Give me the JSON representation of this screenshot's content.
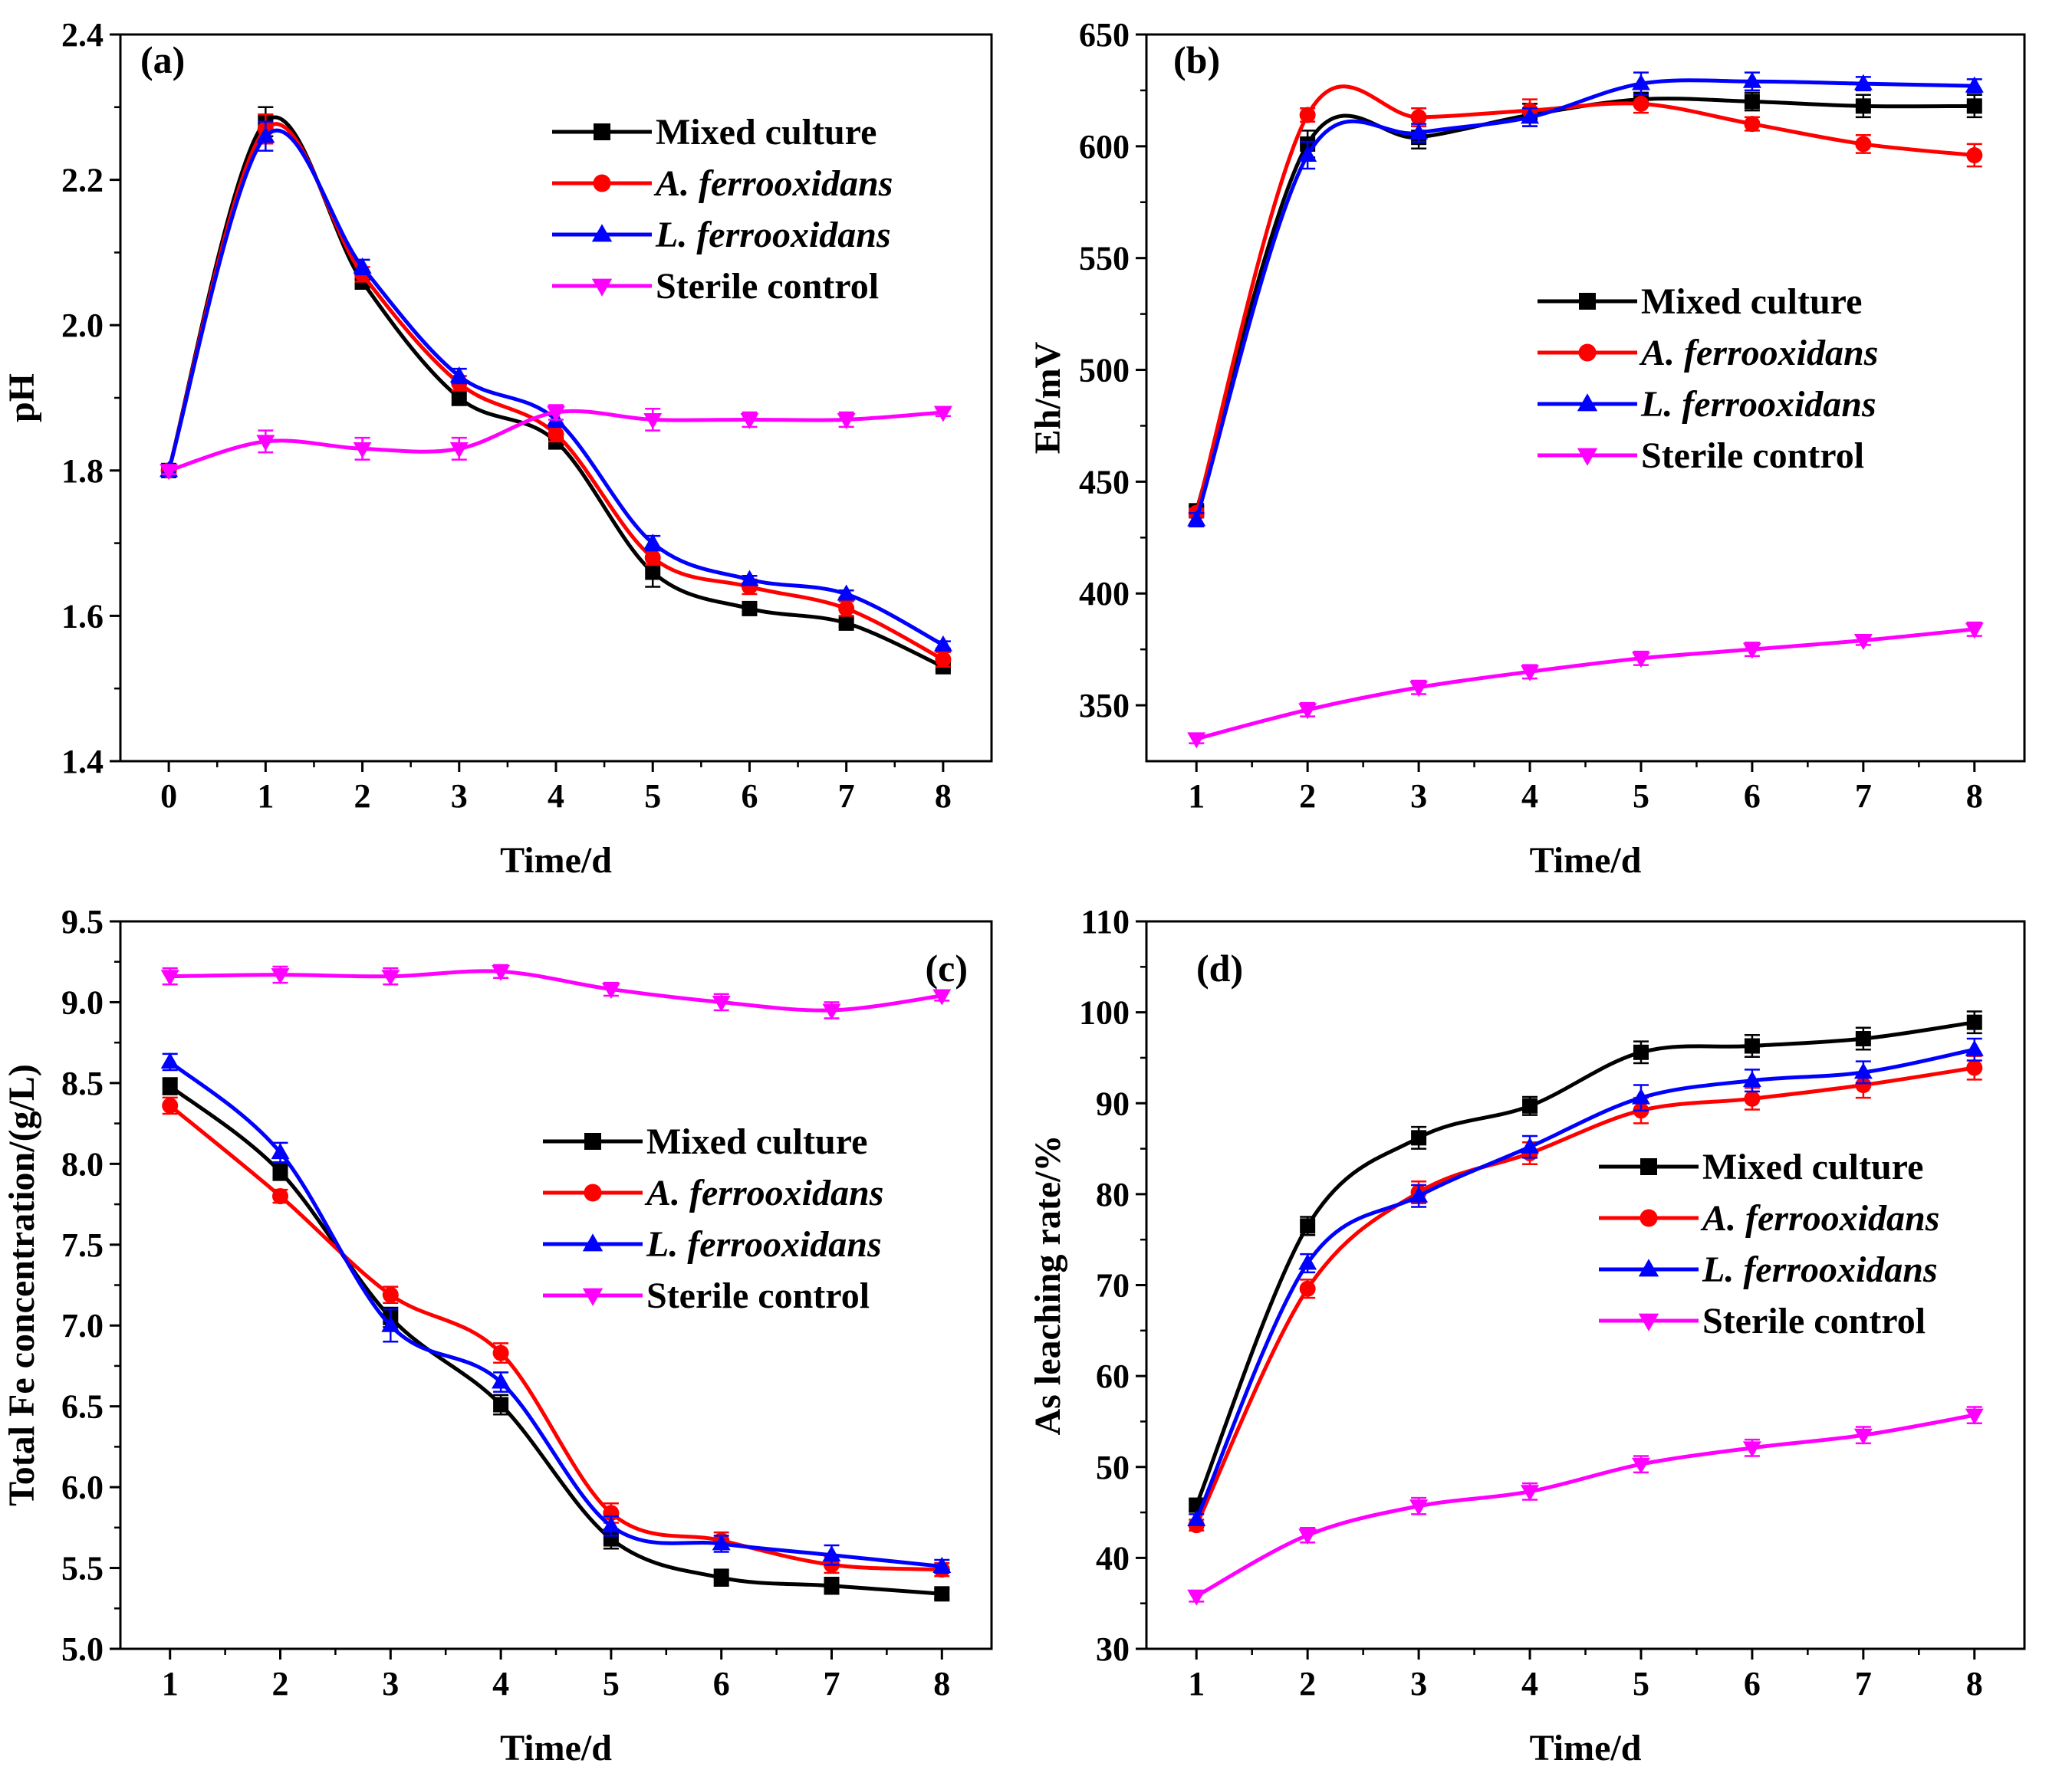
{
  "chart_data": [
    {
      "type": "line",
      "panel_label": "(a)",
      "xlabel": "Time/d",
      "ylabel": "pH",
      "xlim": [
        -0.5,
        8.5
      ],
      "ylim": [
        1.4,
        2.4
      ],
      "xticks": [
        0,
        1,
        2,
        3,
        4,
        5,
        6,
        7,
        8
      ],
      "yticks": [
        1.4,
        1.6,
        1.8,
        2.0,
        2.2,
        2.4
      ],
      "ytick_labels": [
        "1.4",
        "1.6",
        "1.8",
        "2.0",
        "2.2",
        "2.4"
      ],
      "legend_position": "top-right",
      "series": [
        {
          "name": "Mixed culture",
          "marker": "square",
          "color": "#000000",
          "x": [
            0,
            1,
            2,
            3,
            4,
            5,
            6,
            7,
            8
          ],
          "values": [
            1.8,
            2.28,
            2.06,
            1.9,
            1.84,
            1.66,
            1.61,
            1.59,
            1.53
          ],
          "errors": [
            0.005,
            0.02,
            0.01,
            0.01,
            0.01,
            0.02,
            0.005,
            0.005,
            0.005
          ]
        },
        {
          "name": "A. ferrooxidans",
          "marker": "circle",
          "color": "#ff0000",
          "x": [
            0,
            1,
            2,
            3,
            4,
            5,
            6,
            7,
            8
          ],
          "values": [
            1.8,
            2.27,
            2.07,
            1.92,
            1.85,
            1.68,
            1.64,
            1.61,
            1.54
          ],
          "errors": [
            0.005,
            0.02,
            0.01,
            0.01,
            0.01,
            0.01,
            0.01,
            0.01,
            0.01
          ]
        },
        {
          "name": "L. ferrooxidans",
          "marker": "triangle-up",
          "color": "#0000ff",
          "x": [
            0,
            1,
            2,
            3,
            4,
            5,
            6,
            7,
            8
          ],
          "values": [
            1.8,
            2.26,
            2.08,
            1.93,
            1.87,
            1.7,
            1.65,
            1.63,
            1.56
          ],
          "errors": [
            0.005,
            0.02,
            0.01,
            0.01,
            0.01,
            0.01,
            0.005,
            0.005,
            0.005
          ]
        },
        {
          "name": "Sterile control",
          "marker": "triangle-down",
          "color": "#ff00ff",
          "x": [
            0,
            1,
            2,
            3,
            4,
            5,
            6,
            7,
            8
          ],
          "values": [
            1.8,
            1.84,
            1.83,
            1.83,
            1.88,
            1.87,
            1.87,
            1.87,
            1.88
          ],
          "errors": [
            0.005,
            0.015,
            0.015,
            0.015,
            0.01,
            0.015,
            0.01,
            0.01,
            0.005
          ]
        }
      ]
    },
    {
      "type": "line",
      "panel_label": "(b)",
      "xlabel": "Time/d",
      "ylabel": "Eh/mV",
      "xlim": [
        0.55,
        8.45
      ],
      "ylim": [
        325,
        650
      ],
      "xticks": [
        1,
        2,
        3,
        4,
        5,
        6,
        7,
        8
      ],
      "yticks": [
        350,
        400,
        450,
        500,
        550,
        600,
        650
      ],
      "ytick_labels": [
        "350",
        "400",
        "450",
        "500",
        "550",
        "600",
        "650"
      ],
      "legend_position": "center-right",
      "series": [
        {
          "name": "Mixed culture",
          "marker": "square",
          "color": "#000000",
          "x": [
            1,
            2,
            3,
            4,
            5,
            6,
            7,
            8
          ],
          "values": [
            437,
            601,
            604,
            614,
            621,
            620,
            618,
            618
          ],
          "errors": [
            2,
            6,
            5,
            5,
            2,
            4,
            5,
            5
          ]
        },
        {
          "name": "A. ferrooxidans",
          "marker": "circle",
          "color": "#ff0000",
          "x": [
            1,
            2,
            3,
            4,
            5,
            6,
            7,
            8
          ],
          "values": [
            436,
            614,
            613,
            616,
            619,
            610,
            601,
            596
          ],
          "errors": [
            2,
            3,
            4,
            5,
            4,
            3,
            4,
            5
          ]
        },
        {
          "name": "L. ferrooxidans",
          "marker": "triangle-up",
          "color": "#0000ff",
          "x": [
            1,
            2,
            3,
            4,
            5,
            6,
            7,
            8
          ],
          "values": [
            433,
            596,
            606,
            613,
            628,
            629,
            628,
            627
          ],
          "errors": [
            3,
            6,
            4,
            4,
            5,
            4,
            3,
            3
          ]
        },
        {
          "name": "Sterile control",
          "marker": "triangle-down",
          "color": "#ff00ff",
          "x": [
            1,
            2,
            3,
            4,
            5,
            6,
            7,
            8
          ],
          "values": [
            335,
            348,
            358,
            365,
            371,
            375,
            379,
            384
          ],
          "errors": [
            2,
            3,
            3,
            3,
            3,
            3,
            2,
            3
          ]
        }
      ]
    },
    {
      "type": "line",
      "panel_label": "(c)",
      "xlabel": "Time/d",
      "ylabel": "Total Fe concentration/(g/L)",
      "xlim": [
        0.55,
        8.45
      ],
      "ylim": [
        5.0,
        9.5
      ],
      "xticks": [
        1,
        2,
        3,
        4,
        5,
        6,
        7,
        8
      ],
      "yticks": [
        5.0,
        5.5,
        6.0,
        6.5,
        7.0,
        7.5,
        8.0,
        8.5,
        9.0,
        9.5
      ],
      "ytick_labels": [
        "5.0",
        "5.5",
        "6.0",
        "6.5",
        "7.0",
        "7.5",
        "8.0",
        "8.5",
        "9.0",
        "9.5"
      ],
      "legend_position": "center-right",
      "series": [
        {
          "name": "Mixed culture",
          "marker": "square",
          "color": "#000000",
          "x": [
            1,
            2,
            3,
            4,
            5,
            6,
            7,
            8
          ],
          "values": [
            8.48,
            7.95,
            7.05,
            6.51,
            5.68,
            5.44,
            5.39,
            5.34
          ],
          "errors": [
            0.05,
            0.05,
            0.06,
            0.06,
            0.06,
            0.05,
            0.05,
            0.03
          ]
        },
        {
          "name": "A. ferrooxidans",
          "marker": "circle",
          "color": "#ff0000",
          "x": [
            1,
            2,
            3,
            4,
            5,
            6,
            7,
            8
          ],
          "values": [
            8.36,
            7.8,
            7.19,
            6.83,
            5.84,
            5.67,
            5.52,
            5.49
          ],
          "errors": [
            0.05,
            0.04,
            0.05,
            0.06,
            0.06,
            0.05,
            0.05,
            0.04
          ]
        },
        {
          "name": "L. ferrooxidans",
          "marker": "triangle-up",
          "color": "#0000ff",
          "x": [
            1,
            2,
            3,
            4,
            5,
            6,
            7,
            8
          ],
          "values": [
            8.63,
            8.07,
            7.0,
            6.65,
            5.76,
            5.65,
            5.58,
            5.51
          ],
          "errors": [
            0.05,
            0.06,
            0.1,
            0.06,
            0.06,
            0.05,
            0.06,
            0.04
          ]
        },
        {
          "name": "Sterile control",
          "marker": "triangle-down",
          "color": "#ff00ff",
          "x": [
            1,
            2,
            3,
            4,
            5,
            6,
            7,
            8
          ],
          "values": [
            9.16,
            9.17,
            9.16,
            9.19,
            9.08,
            9.0,
            8.95,
            9.04
          ],
          "errors": [
            0.05,
            0.05,
            0.05,
            0.04,
            0.04,
            0.05,
            0.05,
            0.03
          ]
        }
      ]
    },
    {
      "type": "line",
      "panel_label": "(d)",
      "xlabel": "Time/d",
      "ylabel": "As leaching rate/%",
      "xlim": [
        0.55,
        8.45
      ],
      "ylim": [
        30,
        110
      ],
      "xticks": [
        1,
        2,
        3,
        4,
        5,
        6,
        7,
        8
      ],
      "yticks": [
        30,
        40,
        50,
        60,
        70,
        80,
        90,
        100,
        110
      ],
      "ytick_labels": [
        "30",
        "40",
        "50",
        "60",
        "70",
        "80",
        "90",
        "100",
        "110"
      ],
      "legend_position": "center-right",
      "series": [
        {
          "name": "Mixed culture",
          "marker": "square",
          "color": "#000000",
          "x": [
            1,
            2,
            3,
            4,
            5,
            6,
            7,
            8
          ],
          "values": [
            45.8,
            76.5,
            86.2,
            89.7,
            95.6,
            96.3,
            97.1,
            98.9
          ],
          "errors": [
            0.6,
            1.0,
            1.2,
            1.0,
            1.2,
            1.2,
            1.2,
            1.2
          ]
        },
        {
          "name": "A. ferrooxidans",
          "marker": "circle",
          "color": "#ff0000",
          "x": [
            1,
            2,
            3,
            4,
            5,
            6,
            7,
            8
          ],
          "values": [
            43.6,
            69.6,
            80.2,
            84.5,
            89.2,
            90.5,
            92.0,
            93.9
          ],
          "errors": [
            0.6,
            1.0,
            1.2,
            1.2,
            1.4,
            1.2,
            1.4,
            1.3
          ]
        },
        {
          "name": "L. ferrooxidans",
          "marker": "triangle-up",
          "color": "#0000ff",
          "x": [
            1,
            2,
            3,
            4,
            5,
            6,
            7,
            8
          ],
          "values": [
            44.2,
            72.4,
            79.8,
            85.2,
            90.6,
            92.5,
            93.4,
            95.9
          ],
          "errors": [
            0.6,
            1.0,
            1.2,
            1.2,
            1.4,
            1.2,
            1.2,
            1.2
          ]
        },
        {
          "name": "Sterile control",
          "marker": "triangle-down",
          "color": "#ff00ff",
          "x": [
            1,
            2,
            3,
            4,
            5,
            6,
            7,
            8
          ],
          "values": [
            35.8,
            42.5,
            45.7,
            47.3,
            50.3,
            52.1,
            53.5,
            55.7
          ],
          "errors": [
            0.6,
            0.8,
            0.9,
            0.9,
            0.9,
            0.9,
            0.9,
            0.9
          ]
        }
      ]
    }
  ]
}
